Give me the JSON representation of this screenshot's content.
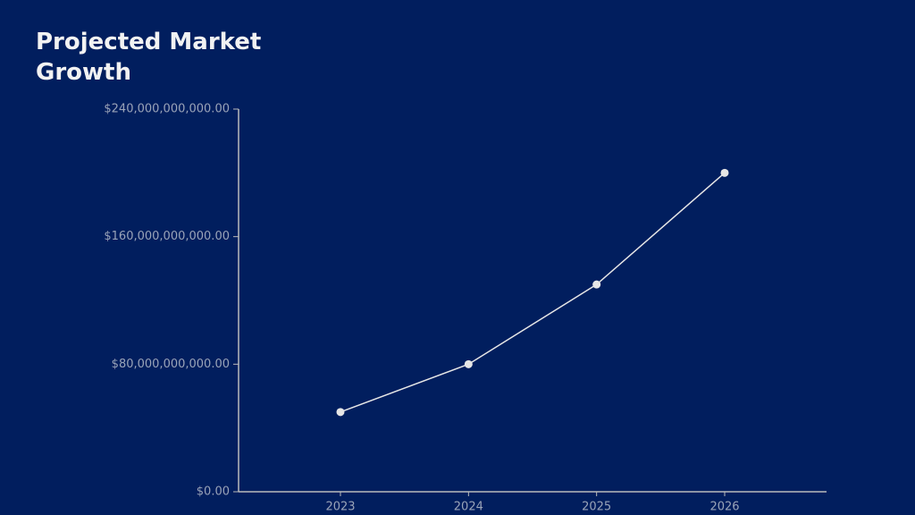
{
  "chart_data": {
    "type": "line",
    "title": "Projected Market Growth",
    "categories": [
      "2023",
      "2024",
      "2025",
      "2026"
    ],
    "values": [
      50000000000,
      80000000000,
      130000000000,
      200000000000
    ],
    "color": "#e6e6e6",
    "ylim": [
      0,
      240000000000
    ],
    "yticks": [
      {
        "value": 0,
        "label": "$0.00"
      },
      {
        "value": 80000000000,
        "label": "$80,000,000,000.00"
      },
      {
        "value": 160000000000,
        "label": "$160,000,000,000.00"
      },
      {
        "value": 240000000000,
        "label": "$240,000,000,000.00"
      }
    ]
  }
}
